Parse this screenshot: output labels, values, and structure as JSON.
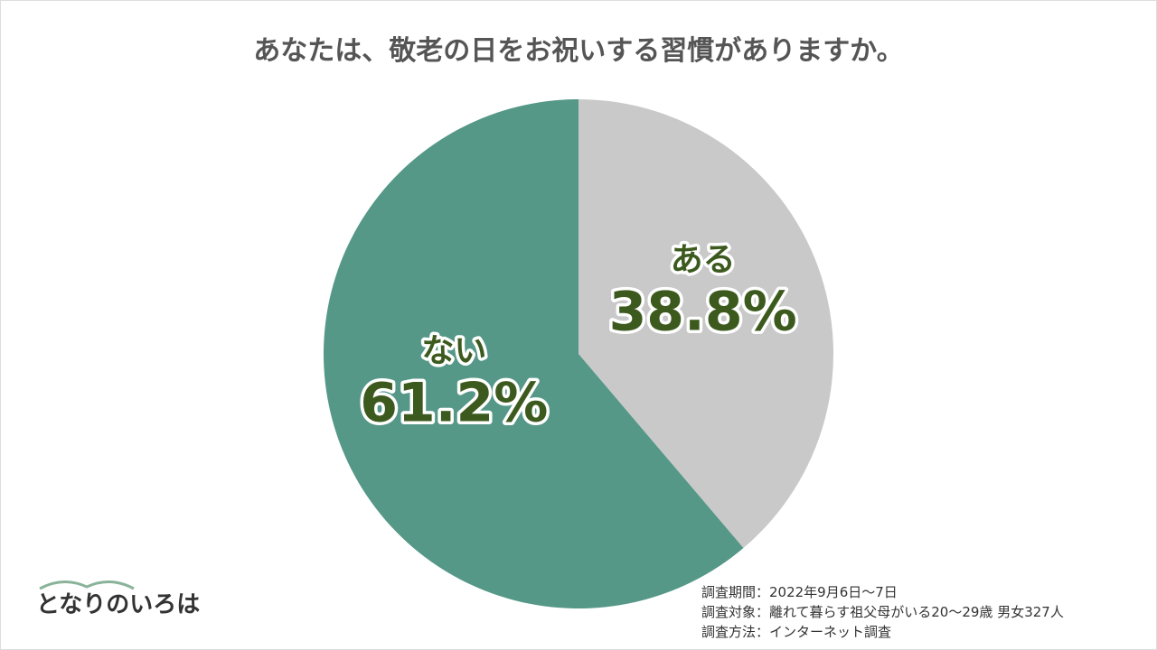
{
  "chart_data": {
    "type": "pie",
    "title": "あなたは、敬老の日をお祝いする習慣がありますか。",
    "categories": [
      "ある",
      "ない"
    ],
    "values": [
      38.8,
      61.2
    ],
    "value_labels": [
      "38.8%",
      "61.2%"
    ],
    "colors": [
      "#c9c9c9",
      "#559887"
    ],
    "notes": [
      "調査期間：2022年9月6日～7日",
      "調査対象：離れて暮らす祖父母がいる20～29歳 男女327人",
      "調査方法：インターネット調査"
    ]
  },
  "logo": "となりのいろは"
}
